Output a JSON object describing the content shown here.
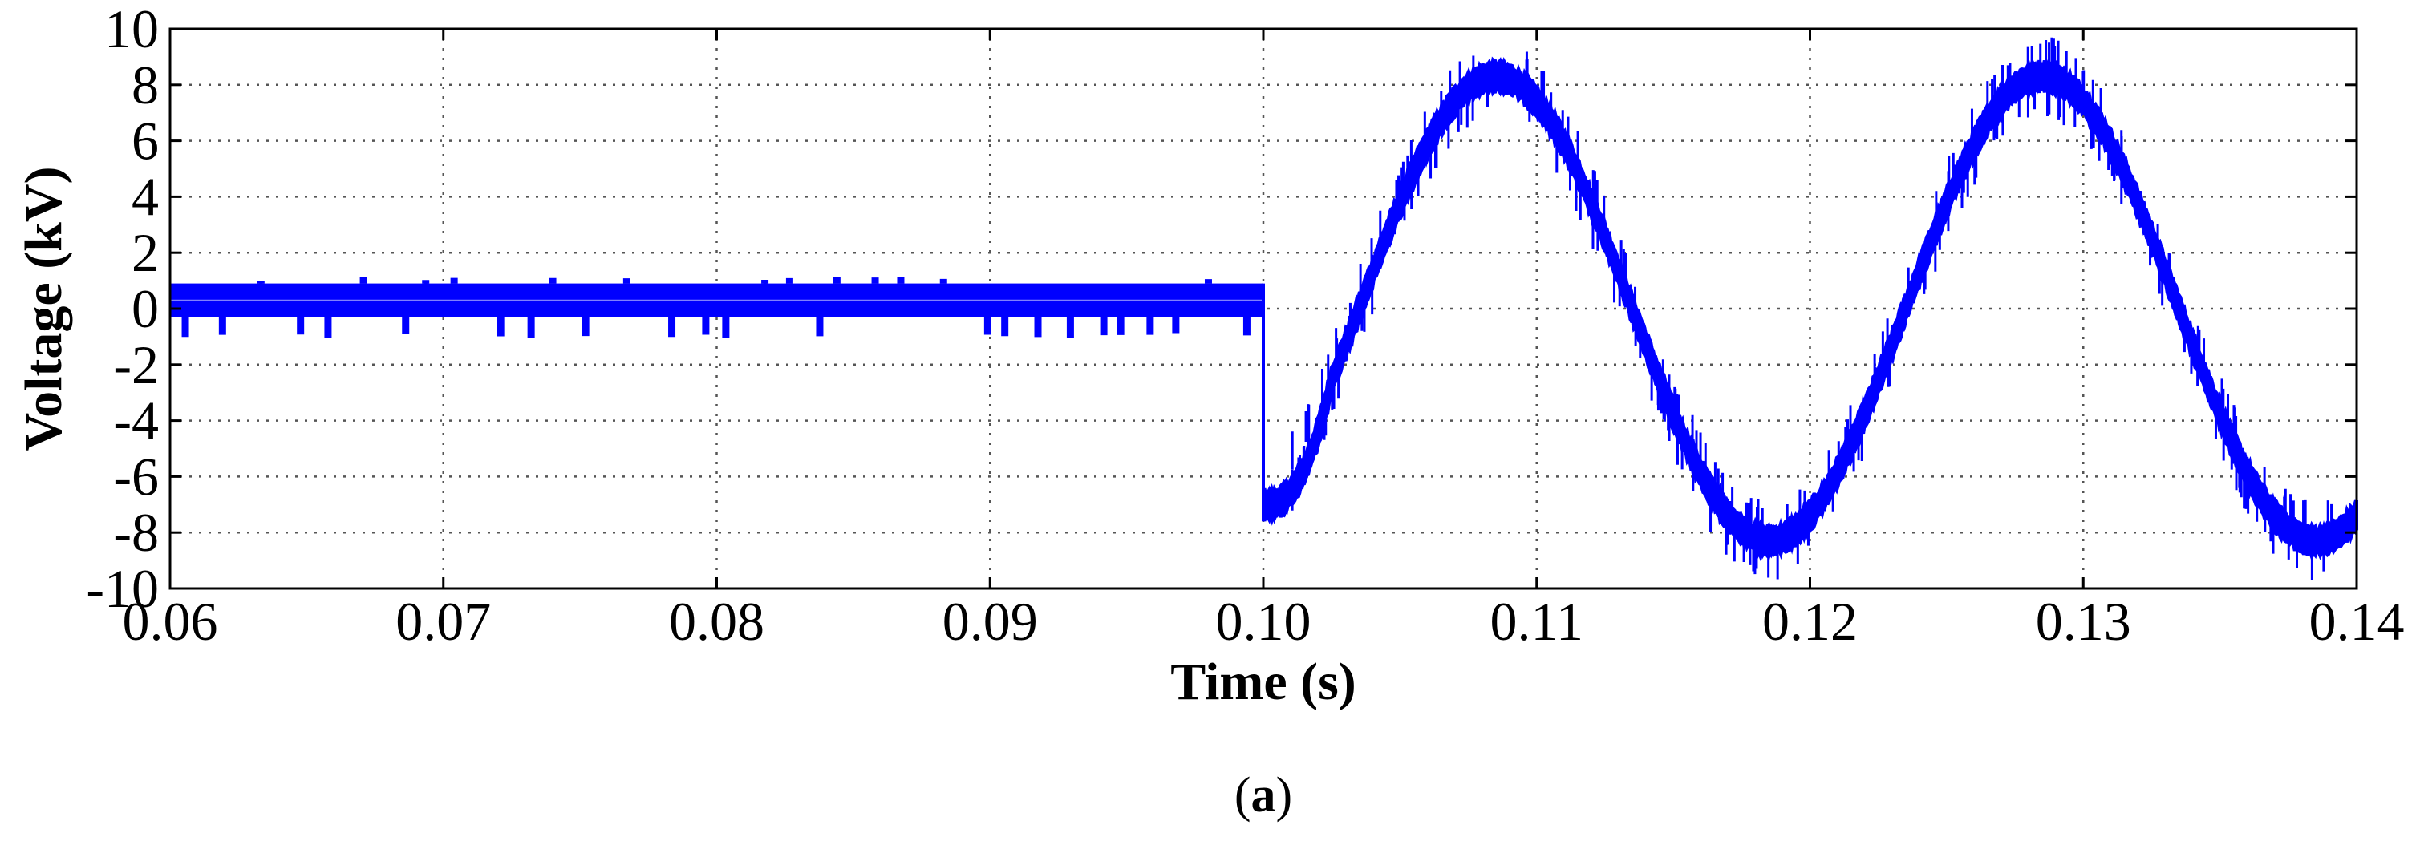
{
  "chart_data": {
    "type": "line",
    "title": "",
    "xlabel": "Time (s)",
    "ylabel": "Voltage (kV)",
    "xlim": [
      0.06,
      0.14
    ],
    "ylim": [
      -10,
      10
    ],
    "x_ticks": [
      "0.06",
      "0.07",
      "0.08",
      "0.09",
      "0.10",
      "0.11",
      "0.12",
      "0.13",
      "0.14"
    ],
    "y_ticks": [
      "10",
      "8",
      "6",
      "4",
      "2",
      "0",
      "-2",
      "-4",
      "-6",
      "-8",
      "-10"
    ],
    "grid": true,
    "grid_style": "dotted",
    "series_color": "#0000ff",
    "series": [
      {
        "name": "",
        "segments": [
          {
            "description": "pre-fault ripple around zero",
            "x_range": [
              0.06,
              0.1
            ],
            "baseline": 0.3,
            "ripple_band": [
              -0.3,
              0.9
            ],
            "spike_range": [
              -1.0,
              1.1
            ]
          },
          {
            "description": "sinusoidal voltage after step at 0.10 s",
            "x_range": [
              0.1,
              0.14
            ],
            "amplitude": 8.3,
            "period": 0.02,
            "peak_times": [
              0.1085,
              0.1285
            ],
            "trough_times": [
              0.1185,
              0.1385
            ],
            "step_value_at_0_10": -7.0,
            "noise_band": 0.6
          }
        ]
      }
    ],
    "caption_open": "(",
    "caption_letter": "a",
    "caption_close": ")"
  }
}
